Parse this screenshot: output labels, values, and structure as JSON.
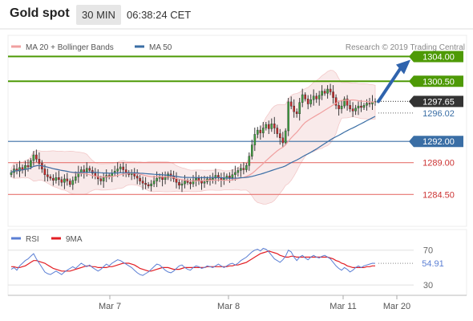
{
  "header": {
    "title": "Gold spot",
    "timeframe": "30 MIN",
    "time": "06:38:24 CET"
  },
  "legend": {
    "ma20_label": "MA 20 + Bollinger Bands",
    "ma50_label": "MA 50",
    "research_label": "Research © 2019 Trading Central"
  },
  "colors": {
    "ma20": "#f0a0a0",
    "ma50": "#3a6ea5",
    "resistance": "#4e9a06",
    "support": "#e77471",
    "pivot": "#3a6ea5",
    "rsi": "#5b7fd4",
    "rsi_ma": "#e31e24",
    "arrow": "#2f63ad"
  },
  "chart_data": [
    {
      "type": "candlestick",
      "title": "Gold spot",
      "x_labels": [
        "Mar 7",
        "Mar 8",
        "Mar 11",
        "Mar 20"
      ],
      "price_levels": [
        {
          "value": "1304.00",
          "kind": "resistance"
        },
        {
          "value": "1300.50",
          "kind": "resistance"
        },
        {
          "value": "1297.65",
          "kind": "last"
        },
        {
          "value": "1296.02",
          "kind": "ma50"
        },
        {
          "value": "1292.00",
          "kind": "pivot"
        },
        {
          "value": "1289.00",
          "kind": "support"
        },
        {
          "value": "1284.50",
          "kind": "support"
        }
      ],
      "ylim": [
        1280,
        1307
      ],
      "series": [
        {
          "name": "MA 20 + Bollinger Bands"
        },
        {
          "name": "MA 50"
        }
      ],
      "close": [
        1287.6,
        1288.1,
        1287.8,
        1288.3,
        1288.0,
        1288.6,
        1288.4,
        1289.3,
        1290.1,
        1289.5,
        1288.9,
        1288.1,
        1287.3,
        1287.0,
        1286.8,
        1286.5,
        1286.9,
        1286.6,
        1286.2,
        1286.7,
        1286.4,
        1285.9,
        1286.5,
        1287.0,
        1287.6,
        1288.0,
        1287.7,
        1288.2,
        1287.9,
        1287.5,
        1287.1,
        1286.7,
        1286.4,
        1286.9,
        1287.2,
        1287.0,
        1287.5,
        1287.8,
        1288.1,
        1288.4,
        1288.0,
        1287.6,
        1287.3,
        1287.5,
        1287.1,
        1286.8,
        1286.4,
        1286.1,
        1285.9,
        1285.7,
        1286.0,
        1286.4,
        1286.8,
        1287.0,
        1286.6,
        1286.9,
        1287.4,
        1287.1,
        1286.7,
        1286.2,
        1285.8,
        1286.0,
        1286.4,
        1286.2,
        1286.0,
        1286.5,
        1286.8,
        1286.4,
        1286.1,
        1286.3,
        1286.7,
        1286.5,
        1286.8,
        1287.2,
        1286.9,
        1286.5,
        1286.8,
        1287.1,
        1286.9,
        1287.3,
        1287.6,
        1287.9,
        1288.2,
        1288.0,
        1288.6,
        1289.9,
        1291.5,
        1293.0,
        1293.6,
        1293.2,
        1293.9,
        1294.4,
        1293.8,
        1294.5,
        1293.9,
        1293.1,
        1292.5,
        1291.8,
        1293.5,
        1297.6,
        1297.0,
        1296.2,
        1295.9,
        1297.5,
        1298.6,
        1298.0,
        1297.3,
        1297.9,
        1298.4,
        1298.0,
        1298.5,
        1299.1,
        1298.8,
        1299.4,
        1299.0,
        1298.2,
        1297.1,
        1296.6,
        1297.0,
        1298.0,
        1297.1,
        1296.6,
        1296.3,
        1296.7,
        1297.0,
        1296.8,
        1297.1,
        1297.4,
        1297.3,
        1297.6,
        1297.65
      ],
      "rsi": {
        "name": "RSI",
        "ma_name": "9MA",
        "ylim": [
          30,
          70
        ],
        "tick_labels": [
          "70",
          "30"
        ],
        "last_value": "54.91",
        "values": [
          48,
          50,
          47,
          52,
          55,
          58,
          60,
          63,
          66,
          60,
          55,
          50,
          45,
          43,
          42,
          44,
          46,
          44,
          42,
          45,
          47,
          49,
          51,
          49,
          52,
          55,
          53,
          51,
          53,
          50,
          48,
          46,
          48,
          51,
          54,
          52,
          55,
          57,
          59,
          58,
          56,
          54,
          52,
          50,
          47,
          44,
          42,
          41,
          43,
          45,
          48,
          51,
          54,
          53,
          50,
          47,
          45,
          44,
          46,
          49,
          52,
          53,
          50,
          48,
          47,
          50,
          52,
          51,
          49,
          50,
          52,
          51,
          50,
          52,
          54,
          52,
          50,
          52,
          54,
          55,
          53,
          55,
          58,
          60,
          62,
          65,
          68,
          70,
          71,
          69,
          72,
          71,
          68,
          64,
          60,
          58,
          56,
          59,
          63,
          70,
          68,
          62,
          58,
          62,
          64,
          61,
          59,
          62,
          64,
          62,
          61,
          63,
          64,
          62,
          60,
          56,
          52,
          49,
          47,
          50,
          48,
          45,
          47,
          50,
          52,
          50,
          52,
          53,
          54,
          55,
          54.91
        ],
        "ma_values": [
          51,
          51,
          50,
          50,
          51,
          52,
          54,
          56,
          58,
          58,
          57,
          56,
          55,
          53,
          51,
          49,
          48,
          47,
          46,
          46,
          46,
          46,
          47,
          48,
          49,
          50,
          51,
          52,
          52,
          51,
          51,
          50,
          50,
          50,
          50,
          51,
          51,
          52,
          53,
          54,
          55,
          55,
          55,
          54,
          53,
          51,
          49,
          48,
          47,
          46,
          46,
          47,
          48,
          49,
          50,
          50,
          50,
          49,
          48,
          48,
          48,
          49,
          50,
          50,
          50,
          50,
          50,
          50,
          50,
          50,
          51,
          51,
          51,
          51,
          51,
          51,
          51,
          51,
          52,
          52,
          53,
          53,
          54,
          55,
          56,
          58,
          60,
          62,
          64,
          66,
          67,
          68,
          69,
          68,
          67,
          66,
          64,
          63,
          62,
          62,
          63,
          63,
          62,
          62,
          62,
          62,
          62,
          62,
          62,
          62,
          62,
          62,
          62,
          62,
          61,
          60,
          58,
          57,
          55,
          54,
          52,
          51,
          50,
          50,
          50,
          50,
          50,
          51,
          51,
          52,
          52
        ]
      }
    }
  ]
}
